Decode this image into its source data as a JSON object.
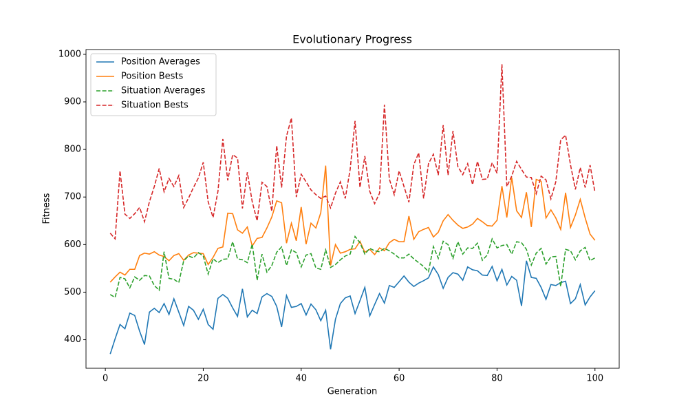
{
  "chart_data": {
    "type": "line",
    "title": "Evolutionary Progress",
    "x_label": "Generation",
    "y_label": "Fitness",
    "x": [
      1,
      2,
      3,
      4,
      5,
      6,
      7,
      8,
      9,
      10,
      11,
      12,
      13,
      14,
      15,
      16,
      17,
      18,
      19,
      20,
      21,
      22,
      23,
      24,
      25,
      26,
      27,
      28,
      29,
      30,
      31,
      32,
      33,
      34,
      35,
      36,
      37,
      38,
      39,
      40,
      41,
      42,
      43,
      44,
      45,
      46,
      47,
      48,
      49,
      50,
      51,
      52,
      53,
      54,
      55,
      56,
      57,
      58,
      59,
      60,
      61,
      62,
      63,
      64,
      65,
      66,
      67,
      68,
      69,
      70,
      71,
      72,
      73,
      74,
      75,
      76,
      77,
      78,
      79,
      80,
      81,
      82,
      83,
      84,
      85,
      86,
      87,
      88,
      89,
      90,
      91,
      92,
      93,
      94,
      95,
      96,
      97,
      98,
      99,
      100
    ],
    "series": [
      {
        "name": "Position Averages",
        "color": "#1f77b4",
        "linestyle": "solid",
        "values": [
          370,
          402,
          432,
          423,
          456,
          451,
          418,
          390,
          458,
          466,
          457,
          476,
          453,
          486,
          458,
          430,
          470,
          462,
          443,
          464,
          432,
          422,
          487,
          495,
          487,
          467,
          449,
          507,
          448,
          462,
          455,
          490,
          497,
          491,
          470,
          427,
          493,
          468,
          470,
          476,
          452,
          475,
          463,
          440,
          462,
          380,
          443,
          476,
          488,
          492,
          455,
          482,
          510,
          450,
          474,
          497,
          477,
          514,
          510,
          522,
          534,
          521,
          512,
          519,
          524,
          530,
          553,
          537,
          508,
          531,
          541,
          538,
          525,
          553,
          547,
          545,
          536,
          535,
          554,
          524,
          548,
          515,
          533,
          525,
          471,
          566,
          531,
          529,
          510,
          485,
          516,
          514,
          520,
          523,
          476,
          486,
          516,
          473,
          490,
          503
        ]
      },
      {
        "name": "Position Bests",
        "color": "#ff7f0e",
        "linestyle": "solid",
        "values": [
          521,
          532,
          542,
          536,
          548,
          548,
          577,
          582,
          580,
          585,
          578,
          575,
          566,
          577,
          581,
          567,
          578,
          583,
          582,
          581,
          558,
          573,
          592,
          595,
          666,
          665,
          631,
          624,
          637,
          597,
          613,
          615,
          635,
          658,
          692,
          688,
          603,
          645,
          608,
          679,
          601,
          645,
          635,
          667,
          766,
          556,
          600,
          582,
          585,
          590,
          591,
          607,
          584,
          590,
          579,
          593,
          587,
          604,
          611,
          606,
          606,
          660,
          611,
          627,
          632,
          636,
          616,
          626,
          650,
          663,
          651,
          641,
          634,
          637,
          643,
          655,
          648,
          640,
          639,
          651,
          723,
          657,
          741,
          671,
          657,
          710,
          637,
          737,
          733,
          656,
          673,
          656,
          632,
          709,
          636,
          662,
          695,
          656,
          622,
          609
        ]
      },
      {
        "name": "Situation Averages",
        "color": "#2ca02c",
        "linestyle": "dashed",
        "values": [
          495,
          489,
          531,
          528,
          509,
          532,
          525,
          535,
          534,
          514,
          504,
          585,
          529,
          527,
          520,
          566,
          576,
          572,
          583,
          576,
          538,
          570,
          562,
          569,
          570,
          606,
          570,
          568,
          562,
          601,
          525,
          580,
          542,
          556,
          584,
          595,
          556,
          589,
          583,
          553,
          578,
          581,
          551,
          548,
          589,
          552,
          558,
          568,
          576,
          580,
          617,
          604,
          580,
          592,
          587,
          585,
          592,
          587,
          580,
          572,
          572,
          580,
          570,
          562,
          554,
          543,
          596,
          571,
          607,
          600,
          571,
          606,
          580,
          593,
          592,
          603,
          567,
          578,
          612,
          593,
          598,
          600,
          580,
          606,
          604,
          590,
          557,
          582,
          592,
          559,
          574,
          575,
          512,
          590,
          587,
          568,
          587,
          594,
          566,
          572
        ]
      },
      {
        "name": "Situation Bests",
        "color": "#d62728",
        "linestyle": "dashed",
        "values": [
          624,
          612,
          755,
          664,
          655,
          665,
          678,
          648,
          690,
          722,
          760,
          711,
          739,
          722,
          745,
          678,
          698,
          720,
          740,
          773,
          690,
          657,
          712,
          822,
          735,
          789,
          782,
          676,
          752,
          690,
          650,
          731,
          722,
          670,
          808,
          720,
          828,
          866,
          700,
          748,
          732,
          715,
          705,
          697,
          702,
          677,
          708,
          732,
          697,
          758,
          860,
          720,
          786,
          712,
          686,
          708,
          894,
          738,
          705,
          755,
          722,
          689,
          768,
          793,
          697,
          770,
          790,
          746,
          851,
          746,
          839,
          764,
          747,
          770,
          726,
          775,
          737,
          738,
          772,
          750,
          979,
          722,
          744,
          775,
          758,
          742,
          741,
          707,
          744,
          736,
          696,
          732,
          820,
          830,
          768,
          716,
          762,
          720,
          767,
          710
        ]
      }
    ],
    "xlim": [
      -3.95,
      104.95
    ],
    "ylim": [
      340,
      1010
    ],
    "xticks": [
      0,
      20,
      40,
      60,
      80,
      100
    ],
    "yticks": [
      400,
      500,
      600,
      700,
      800,
      900,
      1000
    ],
    "grid": false,
    "legend": "upper left"
  }
}
